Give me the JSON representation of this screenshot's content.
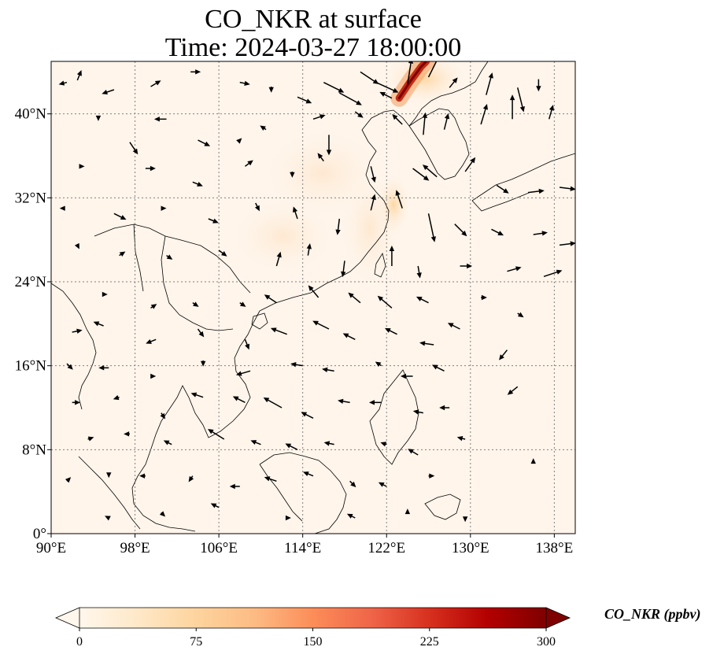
{
  "title": {
    "line1": "CO_NKR at surface",
    "line2": "Time: 2024-03-27 18:00:00"
  },
  "map": {
    "lon_range": [
      90,
      140
    ],
    "lat_range": [
      0,
      45
    ],
    "gridlines": true,
    "x_ticks": [
      {
        "value": 90,
        "label": "90°E"
      },
      {
        "value": 98,
        "label": "98°E"
      },
      {
        "value": 106,
        "label": "106°E"
      },
      {
        "value": 114,
        "label": "114°E"
      },
      {
        "value": 122,
        "label": "122°E"
      },
      {
        "value": 130,
        "label": "130°E"
      },
      {
        "value": 138,
        "label": "138°E"
      }
    ],
    "y_ticks": [
      {
        "value": 0,
        "label": "0°"
      },
      {
        "value": 8,
        "label": "8°N"
      },
      {
        "value": 16,
        "label": "16°N"
      },
      {
        "value": 24,
        "label": "24°N"
      },
      {
        "value": 32,
        "label": "32°N"
      },
      {
        "value": 40,
        "label": "40°N"
      }
    ],
    "field_colors": {
      "background": "#fff5eb",
      "low": "#fde6cc",
      "mid": "#f39b5c",
      "high": "#c22c14",
      "peak": "#7f0000"
    },
    "wind_vectors": [
      {
        "lon": 91.5,
        "lat": 43.0,
        "u": -0.4,
        "v": -0.1
      },
      {
        "lon": 92.5,
        "lat": 43.2,
        "u": 0.2,
        "v": 0.5
      },
      {
        "lon": 96.0,
        "lat": 42.3,
        "u": -0.6,
        "v": -0.2
      },
      {
        "lon": 99.5,
        "lat": 42.6,
        "u": 0.5,
        "v": 0.3
      },
      {
        "lon": 103.3,
        "lat": 44.0,
        "u": 0.5,
        "v": 0.0
      },
      {
        "lon": 108.0,
        "lat": 43.0,
        "u": 0.5,
        "v": -0.1
      },
      {
        "lon": 111.0,
        "lat": 42.6,
        "u": 0.0,
        "v": -0.3
      },
      {
        "lon": 113.5,
        "lat": 41.6,
        "u": 0.7,
        "v": -0.3
      },
      {
        "lon": 116.0,
        "lat": 43.0,
        "u": 1.0,
        "v": -0.5
      },
      {
        "lon": 117.5,
        "lat": 42.0,
        "u": 1.1,
        "v": -0.6
      },
      {
        "lon": 119.5,
        "lat": 44.0,
        "u": 0.9,
        "v": -0.6
      },
      {
        "lon": 121.0,
        "lat": 43.0,
        "u": 1.1,
        "v": -0.5
      },
      {
        "lon": 122.5,
        "lat": 41.5,
        "u": -0.6,
        "v": 0.3
      },
      {
        "lon": 124.0,
        "lat": 42.8,
        "u": 0.2,
        "v": 1.3
      },
      {
        "lon": 126.0,
        "lat": 43.5,
        "u": 0.7,
        "v": 1.4
      },
      {
        "lon": 128.0,
        "lat": 42.5,
        "u": 0.4,
        "v": 0.5
      },
      {
        "lon": 131.5,
        "lat": 41.8,
        "u": 0.3,
        "v": 1.1
      },
      {
        "lon": 134.5,
        "lat": 42.5,
        "u": 0.3,
        "v": -1.2
      },
      {
        "lon": 136.5,
        "lat": 43.3,
        "u": 0.0,
        "v": -0.6
      },
      {
        "lon": 94.5,
        "lat": 39.5,
        "u": 0.0,
        "v": -0.1
      },
      {
        "lon": 97.5,
        "lat": 37.3,
        "u": 0.4,
        "v": -0.6
      },
      {
        "lon": 101.0,
        "lat": 39.5,
        "u": -0.6,
        "v": 0.0
      },
      {
        "lon": 104.0,
        "lat": 37.5,
        "u": 0.6,
        "v": -0.3
      },
      {
        "lon": 108.0,
        "lat": 37.5,
        "u": 0.1,
        "v": 0.1
      },
      {
        "lon": 110.5,
        "lat": 38.5,
        "u": -0.3,
        "v": 0.2
      },
      {
        "lon": 115.0,
        "lat": 39.5,
        "u": 0.6,
        "v": 0.2
      },
      {
        "lon": 116.5,
        "lat": 38.0,
        "u": 0.0,
        "v": -1.0
      },
      {
        "lon": 119.0,
        "lat": 40.2,
        "u": 0.4,
        "v": -0.3
      },
      {
        "lon": 123.5,
        "lat": 39.0,
        "u": -0.5,
        "v": 0.5
      },
      {
        "lon": 125.5,
        "lat": 38.0,
        "u": 0.1,
        "v": 1.1
      },
      {
        "lon": 127.5,
        "lat": 38.5,
        "u": 0.2,
        "v": 0.8
      },
      {
        "lon": 131.0,
        "lat": 39.0,
        "u": 0.3,
        "v": 1.0
      },
      {
        "lon": 134.0,
        "lat": 39.5,
        "u": 0.0,
        "v": 1.2
      },
      {
        "lon": 137.5,
        "lat": 39.5,
        "u": 0.2,
        "v": 0.7
      },
      {
        "lon": 93.0,
        "lat": 35.0,
        "u": 0.1,
        "v": 0.0
      },
      {
        "lon": 99.0,
        "lat": 34.8,
        "u": 0.5,
        "v": 0.0
      },
      {
        "lon": 103.5,
        "lat": 33.5,
        "u": 0.5,
        "v": -0.2
      },
      {
        "lon": 108.5,
        "lat": 35.0,
        "u": 0.4,
        "v": 0.3
      },
      {
        "lon": 113.0,
        "lat": 34.5,
        "u": 0.0,
        "v": -0.3
      },
      {
        "lon": 116.0,
        "lat": 35.5,
        "u": -0.3,
        "v": 0.4
      },
      {
        "lon": 120.5,
        "lat": 35.0,
        "u": 0.2,
        "v": -0.8
      },
      {
        "lon": 124.5,
        "lat": 34.8,
        "u": 0.8,
        "v": -0.6
      },
      {
        "lon": 126.8,
        "lat": 34.0,
        "u": -0.7,
        "v": 0.6
      },
      {
        "lon": 129.5,
        "lat": 34.5,
        "u": 0.5,
        "v": 0.7
      },
      {
        "lon": 132.5,
        "lat": 33.2,
        "u": 0.6,
        "v": -0.4
      },
      {
        "lon": 135.5,
        "lat": 32.5,
        "u": 0.8,
        "v": 0.1
      },
      {
        "lon": 138.5,
        "lat": 33.0,
        "u": 0.8,
        "v": -0.1
      },
      {
        "lon": 91.0,
        "lat": 31.0,
        "u": -0.1,
        "v": 0.0
      },
      {
        "lon": 96.0,
        "lat": 30.5,
        "u": 0.6,
        "v": -0.3
      },
      {
        "lon": 101.0,
        "lat": 31.0,
        "u": 0.0,
        "v": 0.0
      },
      {
        "lon": 105.0,
        "lat": 30.0,
        "u": 0.5,
        "v": -0.2
      },
      {
        "lon": 109.5,
        "lat": 31.5,
        "u": 0.2,
        "v": -0.4
      },
      {
        "lon": 113.5,
        "lat": 30.0,
        "u": -0.2,
        "v": 0.6
      },
      {
        "lon": 117.5,
        "lat": 30.0,
        "u": -0.1,
        "v": -0.8
      },
      {
        "lon": 120.5,
        "lat": 30.8,
        "u": 0.2,
        "v": 0.8
      },
      {
        "lon": 123.5,
        "lat": 31.0,
        "u": -0.3,
        "v": 0.9
      },
      {
        "lon": 126.0,
        "lat": 30.5,
        "u": 0.3,
        "v": -1.4
      },
      {
        "lon": 128.5,
        "lat": 29.5,
        "u": 0.6,
        "v": -0.6
      },
      {
        "lon": 132.0,
        "lat": 29.0,
        "u": 0.6,
        "v": -0.3
      },
      {
        "lon": 136.0,
        "lat": 28.5,
        "u": 0.7,
        "v": 0.1
      },
      {
        "lon": 138.5,
        "lat": 27.5,
        "u": 0.8,
        "v": 0.1
      },
      {
        "lon": 92.5,
        "lat": 27.5,
        "u": 0.1,
        "v": -0.2
      },
      {
        "lon": 96.5,
        "lat": 26.5,
        "u": 0.3,
        "v": 0.2
      },
      {
        "lon": 101.0,
        "lat": 26.5,
        "u": 0.3,
        "v": -0.2
      },
      {
        "lon": 106.0,
        "lat": 27.0,
        "u": 0.4,
        "v": -0.3
      },
      {
        "lon": 111.5,
        "lat": 25.5,
        "u": 0.2,
        "v": 0.7
      },
      {
        "lon": 114.5,
        "lat": 26.5,
        "u": 0.1,
        "v": 0.6
      },
      {
        "lon": 118.0,
        "lat": 26.0,
        "u": -0.1,
        "v": -0.8
      },
      {
        "lon": 122.5,
        "lat": 25.5,
        "u": 0.0,
        "v": 1.0
      },
      {
        "lon": 125.0,
        "lat": 25.5,
        "u": 0.1,
        "v": -0.6
      },
      {
        "lon": 129.0,
        "lat": 25.5,
        "u": 0.6,
        "v": 0.0
      },
      {
        "lon": 133.5,
        "lat": 25.0,
        "u": 0.7,
        "v": 0.2
      },
      {
        "lon": 137.0,
        "lat": 24.5,
        "u": 0.9,
        "v": 0.3
      },
      {
        "lon": 95.0,
        "lat": 22.8,
        "u": 0.2,
        "v": 0.0
      },
      {
        "lon": 99.5,
        "lat": 21.5,
        "u": 0.3,
        "v": 0.2
      },
      {
        "lon": 103.5,
        "lat": 22.0,
        "u": 0.3,
        "v": -0.2
      },
      {
        "lon": 108.0,
        "lat": 22.0,
        "u": 0.3,
        "v": -0.2
      },
      {
        "lon": 111.5,
        "lat": 22.0,
        "u": -0.6,
        "v": 0.4
      },
      {
        "lon": 115.5,
        "lat": 22.5,
        "u": -0.5,
        "v": 0.6
      },
      {
        "lon": 119.5,
        "lat": 22.0,
        "u": -0.6,
        "v": 0.5
      },
      {
        "lon": 122.5,
        "lat": 21.5,
        "u": -0.7,
        "v": 0.6
      },
      {
        "lon": 126.0,
        "lat": 22.0,
        "u": -0.6,
        "v": 0.3
      },
      {
        "lon": 131.0,
        "lat": 22.5,
        "u": 0.3,
        "v": 0.0
      },
      {
        "lon": 134.5,
        "lat": 21.0,
        "u": 0.3,
        "v": -0.2
      },
      {
        "lon": 92.0,
        "lat": 19.2,
        "u": 0.5,
        "v": 0.1
      },
      {
        "lon": 95.0,
        "lat": 19.8,
        "u": -0.5,
        "v": 0.2
      },
      {
        "lon": 100.0,
        "lat": 18.5,
        "u": -0.5,
        "v": -0.2
      },
      {
        "lon": 104.0,
        "lat": 19.5,
        "u": 0.3,
        "v": -0.4
      },
      {
        "lon": 108.5,
        "lat": 18.5,
        "u": 0.2,
        "v": -0.5
      },
      {
        "lon": 112.5,
        "lat": 19.0,
        "u": -0.8,
        "v": 0.3
      },
      {
        "lon": 116.5,
        "lat": 19.5,
        "u": -0.8,
        "v": 0.4
      },
      {
        "lon": 119.0,
        "lat": 18.5,
        "u": -0.6,
        "v": 0.3
      },
      {
        "lon": 123.0,
        "lat": 19.0,
        "u": -0.6,
        "v": 0.3
      },
      {
        "lon": 126.5,
        "lat": 18.0,
        "u": -0.7,
        "v": 0.1
      },
      {
        "lon": 129.0,
        "lat": 19.5,
        "u": -0.6,
        "v": 0.3
      },
      {
        "lon": 133.5,
        "lat": 17.5,
        "u": -0.4,
        "v": -0.5
      },
      {
        "lon": 91.5,
        "lat": 16.2,
        "u": 0.3,
        "v": -0.3
      },
      {
        "lon": 95.5,
        "lat": 15.8,
        "u": -0.5,
        "v": 0.0
      },
      {
        "lon": 100.0,
        "lat": 15.0,
        "u": 0.0,
        "v": 0.0
      },
      {
        "lon": 104.5,
        "lat": 16.5,
        "u": 0.0,
        "v": -0.3
      },
      {
        "lon": 109.0,
        "lat": 15.5,
        "u": -0.7,
        "v": -0.2
      },
      {
        "lon": 114.0,
        "lat": 16.0,
        "u": -0.6,
        "v": 0.1
      },
      {
        "lon": 117.0,
        "lat": 15.5,
        "u": -0.6,
        "v": 0.1
      },
      {
        "lon": 121.5,
        "lat": 16.0,
        "u": -0.3,
        "v": 0.2
      },
      {
        "lon": 124.5,
        "lat": 15.0,
        "u": -0.6,
        "v": 0.0
      },
      {
        "lon": 127.5,
        "lat": 15.5,
        "u": -0.6,
        "v": 0.3
      },
      {
        "lon": 134.5,
        "lat": 14.0,
        "u": -0.5,
        "v": -0.4
      },
      {
        "lon": 92.0,
        "lat": 12.5,
        "u": 0.4,
        "v": 0.0
      },
      {
        "lon": 96.5,
        "lat": 13.0,
        "u": -0.3,
        "v": -0.1
      },
      {
        "lon": 100.5,
        "lat": 11.5,
        "u": 0.2,
        "v": -0.3
      },
      {
        "lon": 104.5,
        "lat": 13.0,
        "u": -0.6,
        "v": 0.2
      },
      {
        "lon": 108.5,
        "lat": 12.5,
        "u": -0.6,
        "v": 0.3
      },
      {
        "lon": 112.0,
        "lat": 12.0,
        "u": -0.9,
        "v": 0.5
      },
      {
        "lon": 115.0,
        "lat": 11.0,
        "u": -0.6,
        "v": 0.3
      },
      {
        "lon": 118.5,
        "lat": 12.5,
        "u": -0.6,
        "v": 0.1
      },
      {
        "lon": 121.5,
        "lat": 12.5,
        "u": -0.6,
        "v": 0.0
      },
      {
        "lon": 125.5,
        "lat": 11.5,
        "u": -0.5,
        "v": 0.1
      },
      {
        "lon": 128.0,
        "lat": 12.0,
        "u": -0.5,
        "v": 0.0
      },
      {
        "lon": 93.5,
        "lat": 9.0,
        "u": 0.3,
        "v": 0.1
      },
      {
        "lon": 97.5,
        "lat": 9.5,
        "u": -0.3,
        "v": 0.0
      },
      {
        "lon": 101.5,
        "lat": 8.5,
        "u": -0.4,
        "v": 0.2
      },
      {
        "lon": 106.5,
        "lat": 9.0,
        "u": -0.8,
        "v": 0.5
      },
      {
        "lon": 110.0,
        "lat": 8.5,
        "u": -0.5,
        "v": 0.2
      },
      {
        "lon": 113.5,
        "lat": 8.0,
        "u": -0.6,
        "v": 0.3
      },
      {
        "lon": 117.0,
        "lat": 8.5,
        "u": -0.5,
        "v": 0.1
      },
      {
        "lon": 122.0,
        "lat": 8.5,
        "u": -0.3,
        "v": 0.1
      },
      {
        "lon": 125.0,
        "lat": 7.5,
        "u": -0.5,
        "v": 0.3
      },
      {
        "lon": 129.5,
        "lat": 9.0,
        "u": -0.4,
        "v": 0.1
      },
      {
        "lon": 136.0,
        "lat": 7.0,
        "u": 0.0,
        "v": 0.1
      },
      {
        "lon": 91.5,
        "lat": 5.0,
        "u": 0.2,
        "v": 0.2
      },
      {
        "lon": 95.5,
        "lat": 5.5,
        "u": 0.0,
        "v": -0.1
      },
      {
        "lon": 99.0,
        "lat": 5.5,
        "u": -0.3,
        "v": 0.0
      },
      {
        "lon": 103.5,
        "lat": 5.5,
        "u": -0.2,
        "v": -0.3
      },
      {
        "lon": 108.0,
        "lat": 4.5,
        "u": -0.5,
        "v": 0.0
      },
      {
        "lon": 111.5,
        "lat": 5.0,
        "u": -0.6,
        "v": 0.2
      },
      {
        "lon": 115.0,
        "lat": 5.5,
        "u": -0.5,
        "v": 0.2
      },
      {
        "lon": 118.5,
        "lat": 5.0,
        "u": 0.3,
        "v": -0.3
      },
      {
        "lon": 122.0,
        "lat": 4.5,
        "u": -0.4,
        "v": 0.2
      },
      {
        "lon": 126.0,
        "lat": 5.5,
        "u": 0.3,
        "v": 0.0
      },
      {
        "lon": 95.5,
        "lat": 1.5,
        "u": -0.2,
        "v": 0.1
      },
      {
        "lon": 100.5,
        "lat": 2.0,
        "u": 0.2,
        "v": -0.2
      },
      {
        "lon": 106.0,
        "lat": 2.5,
        "u": -0.4,
        "v": 0.2
      },
      {
        "lon": 112.5,
        "lat": 1.5,
        "u": 0.2,
        "v": 0.0
      },
      {
        "lon": 119.0,
        "lat": 1.5,
        "u": -0.4,
        "v": 0.2
      },
      {
        "lon": 124.0,
        "lat": 2.0,
        "u": 0.0,
        "v": 0.2
      },
      {
        "lon": 129.5,
        "lat": 1.5,
        "u": 0.0,
        "v": -0.2
      }
    ],
    "high_co_plume": {
      "color": "#c22c14",
      "points": [
        {
          "lon": 123.2,
          "lat": 41.5
        },
        {
          "lon": 124.2,
          "lat": 43.0
        },
        {
          "lon": 125.3,
          "lat": 44.5
        },
        {
          "lon": 125.8,
          "lat": 45.0
        }
      ]
    }
  },
  "colorbar": {
    "label": "CO_NKR (ppbv)",
    "min": 0,
    "max": 300,
    "extend": "both",
    "ticks": [
      {
        "value": 0,
        "label": "0"
      },
      {
        "value": 75,
        "label": "75"
      },
      {
        "value": 150,
        "label": "150"
      },
      {
        "value": 225,
        "label": "225"
      },
      {
        "value": 300,
        "label": "300"
      }
    ],
    "colormap": "OrRd",
    "colors": [
      "#fff7ec",
      "#fee8c8",
      "#fdd49e",
      "#fdbb84",
      "#fc8d59",
      "#ef6548",
      "#d7301f",
      "#b30000",
      "#7f0000"
    ]
  }
}
